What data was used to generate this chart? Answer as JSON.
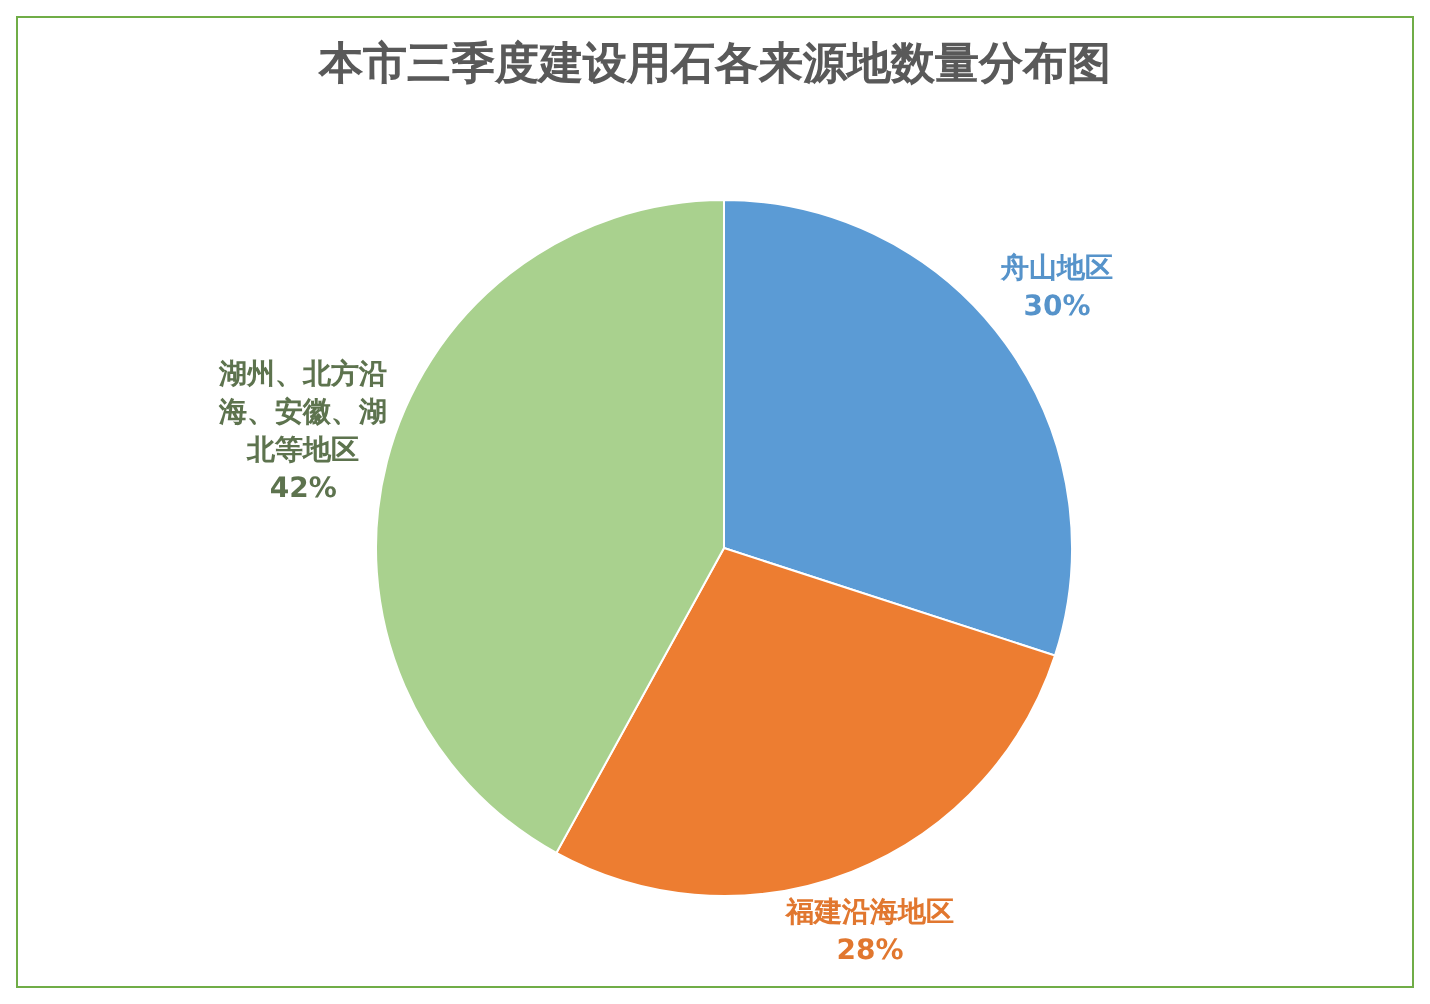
{
  "chart_data": {
    "type": "pie",
    "title": "本市三季度建设用石各来源地数量分布图",
    "categories": [
      "舟山地区",
      "福建沿海地区",
      "湖州、北方沿海、安徽、湖北等地区"
    ],
    "values": [
      30,
      28,
      42
    ],
    "value_labels": [
      "30%",
      "28%",
      "42%"
    ],
    "colors": [
      "#5b9bd5",
      "#ed7d31",
      "#a9d18e"
    ],
    "legend": false
  }
}
